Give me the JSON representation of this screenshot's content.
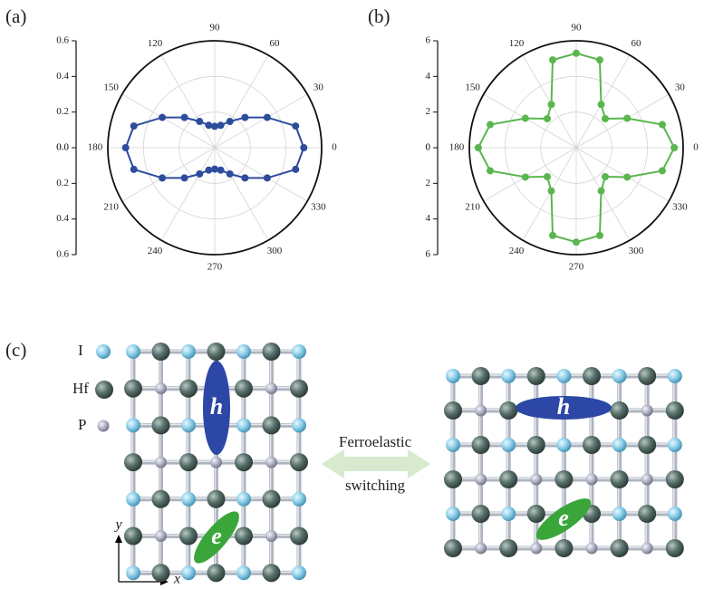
{
  "chart_data": [
    {
      "type": "polar",
      "panel_label": "(a)",
      "color": "#2d4c9c",
      "theta": [
        0,
        15,
        30,
        45,
        60,
        75,
        90,
        105,
        120,
        135,
        150,
        165,
        180,
        195,
        210,
        225,
        240,
        255,
        270,
        285,
        300,
        315,
        330,
        345
      ],
      "values": [
        0.5,
        0.47,
        0.34,
        0.24,
        0.17,
        0.13,
        0.12,
        0.13,
        0.17,
        0.24,
        0.34,
        0.47,
        0.5,
        0.47,
        0.34,
        0.24,
        0.17,
        0.13,
        0.12,
        0.13,
        0.17,
        0.24,
        0.34,
        0.47
      ],
      "rlim": [
        0,
        0.6
      ],
      "rticks": [
        {
          "value": 0,
          "label": "0.0"
        },
        0.2,
        0.4,
        0.6
      ],
      "thetaticks": [
        0,
        30,
        60,
        90,
        120,
        150,
        180,
        210,
        240,
        270,
        300,
        330
      ],
      "grid": true
    },
    {
      "type": "polar",
      "panel_label": "(b)",
      "color": "#5ab64e",
      "theta": [
        0,
        15,
        30,
        45,
        60,
        75,
        90,
        105,
        120,
        135,
        150,
        165,
        180,
        195,
        210,
        225,
        240,
        255,
        270,
        285,
        300,
        315,
        330,
        345
      ],
      "values": [
        5.5,
        5.0,
        3.3,
        2.3,
        2.8,
        5.1,
        5.3,
        5.1,
        2.8,
        2.3,
        3.3,
        5.0,
        5.5,
        5.0,
        3.3,
        2.3,
        2.8,
        5.1,
        5.3,
        5.1,
        2.8,
        2.3,
        3.3,
        5.0
      ],
      "rlim": [
        0,
        6
      ],
      "rticks": [
        0,
        2,
        4,
        6
      ],
      "thetaticks": [
        0,
        30,
        60,
        90,
        120,
        150,
        180,
        210,
        240,
        270,
        300,
        330
      ],
      "grid": true
    }
  ],
  "diagram": {
    "panel_label": "(c)",
    "legend": [
      "I",
      "Hf",
      "P"
    ],
    "hole": "h",
    "electron": "e",
    "arrow_text": [
      "Ferroelastic",
      "switching"
    ],
    "axes": {
      "x": "x",
      "y": "y"
    }
  }
}
